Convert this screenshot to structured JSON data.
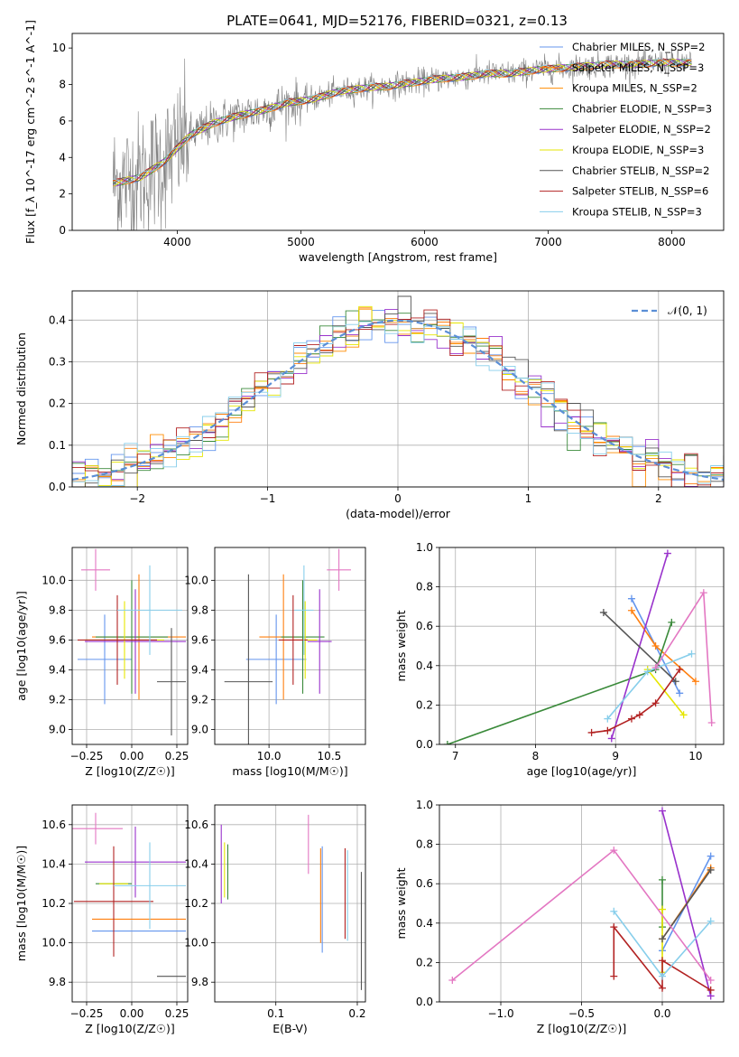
{
  "figure_title": "PLATE=0641, MJD=52176, FIBERID=0321, z=0.13",
  "colors": {
    "chabrier_miles": "#6495ed",
    "salpeter_miles": "#ff7f0e",
    "kroupa_miles": "#ff8c00",
    "chabrier_elodie": "#3a8a3a",
    "salpeter_elodie": "#9932cc",
    "kroupa_elodie": "#e6e600",
    "chabrier_stelib": "#555555",
    "salpeter_stelib": "#b22222",
    "kroupa_stelib": "#87ceeb",
    "pink": "#e377c2",
    "data_gray": "#808080",
    "gauss_blue": "#5b8fd6",
    "grid": "#b0b0b0"
  },
  "chart_data": [
    {
      "id": "spectrum",
      "type": "line",
      "title": "PLATE=0641, MJD=52176, FIBERID=0321, z=0.13",
      "xlabel": "wavelength [Angstrom, rest frame]",
      "ylabel": "Flux [f_λ 10^-17 erg cm^-2 s^-1 A^-1]",
      "xlim": [
        3150,
        8420
      ],
      "ylim": [
        0,
        10.8
      ],
      "xticks": [
        4000,
        5000,
        6000,
        7000,
        8000
      ],
      "yticks": [
        0,
        2,
        4,
        6,
        8,
        10
      ],
      "grid": false,
      "legend_position": "top-right",
      "legend": [
        {
          "label": "Chabrier MILES, N_SSP=2",
          "color": "#6495ed"
        },
        {
          "label": "Salpeter MILES, N_SSP=3",
          "color": "#ff7f0e"
        },
        {
          "label": "Kroupa MILES, N_SSP=2",
          "color": "#ff8c00"
        },
        {
          "label": "Chabrier ELODIE, N_SSP=3",
          "color": "#3a8a3a"
        },
        {
          "label": "Salpeter ELODIE, N_SSP=2",
          "color": "#9932cc"
        },
        {
          "label": "Kroupa ELODIE, N_SSP=3",
          "color": "#e6e600"
        },
        {
          "label": "Chabrier STELIB, N_SSP=2",
          "color": "#555555"
        },
        {
          "label": "Salpeter STELIB, N_SSP=6",
          "color": "#b22222"
        },
        {
          "label": "Kroupa STELIB, N_SSP=3",
          "color": "#87ceeb"
        }
      ],
      "model_x": [
        3500,
        3700,
        3900,
        4000,
        4100,
        4300,
        4500,
        4700,
        4900,
        5100,
        5300,
        5500,
        5700,
        5900,
        6100,
        6300,
        6500,
        6700,
        6900,
        7100,
        7300,
        7500,
        7700,
        7900,
        8150
      ],
      "model_y": [
        2.6,
        2.9,
        3.8,
        4.5,
        5.2,
        5.9,
        6.3,
        6.6,
        7.0,
        7.2,
        7.6,
        7.8,
        7.9,
        8.1,
        8.3,
        8.4,
        8.6,
        8.6,
        8.8,
        8.9,
        9.0,
        9.1,
        9.1,
        9.2,
        9.2
      ]
    },
    {
      "id": "residuals",
      "type": "line",
      "xlabel": "(data-model)/error",
      "ylabel": "Normed distribution",
      "xlim": [
        -2.5,
        2.5
      ],
      "ylim": [
        0,
        0.47
      ],
      "xticks": [
        -2,
        -1,
        0,
        1,
        2
      ],
      "yticks": [
        0.0,
        0.1,
        0.2,
        0.3,
        0.4
      ],
      "grid": true,
      "legend_position": "top-right",
      "legend": [
        {
          "label": "𝒩(0, 1)",
          "color": "#5b8fd6"
        }
      ],
      "bin_width": 0.1
    },
    {
      "id": "age-vs-Z",
      "type": "scatter",
      "xlabel": "Z [log10(Z/Z☉)]",
      "ylabel": "age [log10(age/yr)]",
      "xlim": [
        -0.33,
        0.31
      ],
      "ylim": [
        8.9,
        10.22
      ],
      "xticks": [
        -0.25,
        0.0,
        0.25
      ],
      "yticks": [
        9.0,
        9.2,
        9.4,
        9.6,
        9.8,
        10.0
      ],
      "grid": true,
      "points": [
        {
          "x": -0.15,
          "y": 9.47,
          "xerr": 0.15,
          "yerr": 0.3,
          "color": "#6495ed"
        },
        {
          "x": 0.04,
          "y": 9.62,
          "xerr": 0.26,
          "yerr": 0.42,
          "color": "#ff7f0e"
        },
        {
          "x": 0.0,
          "y": 9.62,
          "xerr": 0.2,
          "yerr": 0.38,
          "color": "#3a8a3a"
        },
        {
          "x": 0.02,
          "y": 9.59,
          "xerr": 0.28,
          "yerr": 0.35,
          "color": "#9932cc"
        },
        {
          "x": -0.04,
          "y": 9.6,
          "xerr": 0.22,
          "yerr": 0.26,
          "color": "#e6e600"
        },
        {
          "x": 0.22,
          "y": 9.32,
          "xerr": 0.08,
          "yerr": 0.36,
          "color": "#555555"
        },
        {
          "x": -0.08,
          "y": 9.6,
          "xerr": 0.22,
          "yerr": 0.3,
          "color": "#b22222"
        },
        {
          "x": 0.1,
          "y": 9.8,
          "xerr": 0.18,
          "yerr": 0.3,
          "color": "#87ceeb"
        },
        {
          "x": -0.2,
          "y": 10.07,
          "xerr": 0.08,
          "yerr": 0.14,
          "color": "#e377c2"
        }
      ]
    },
    {
      "id": "age-vs-mass",
      "type": "scatter",
      "xlabel": "mass [log10(M/M☉)]",
      "ylabel": "",
      "xlim": [
        9.55,
        10.8
      ],
      "ylim": [
        8.9,
        10.22
      ],
      "xticks": [
        10.0,
        10.5
      ],
      "yticks": [
        9.0,
        9.2,
        9.4,
        9.6,
        9.8,
        10.0
      ],
      "grid": true,
      "points": [
        {
          "x": 10.06,
          "y": 9.47,
          "xerr": 0.25,
          "yerr": 0.3,
          "color": "#6495ed"
        },
        {
          "x": 10.12,
          "y": 9.62,
          "xerr": 0.2,
          "yerr": 0.42,
          "color": "#ff7f0e"
        },
        {
          "x": 10.28,
          "y": 9.62,
          "xerr": 0.18,
          "yerr": 0.38,
          "color": "#3a8a3a"
        },
        {
          "x": 10.42,
          "y": 9.59,
          "xerr": 0.1,
          "yerr": 0.35,
          "color": "#9932cc"
        },
        {
          "x": 10.3,
          "y": 9.6,
          "xerr": 0.1,
          "yerr": 0.26,
          "color": "#e6e600"
        },
        {
          "x": 9.83,
          "y": 9.32,
          "xerr": 0.2,
          "yerr": 0.72,
          "color": "#555555"
        },
        {
          "x": 10.2,
          "y": 9.6,
          "xerr": 0.12,
          "yerr": 0.3,
          "color": "#b22222"
        },
        {
          "x": 10.29,
          "y": 9.8,
          "xerr": 0.08,
          "yerr": 0.3,
          "color": "#87ceeb"
        },
        {
          "x": 10.58,
          "y": 10.07,
          "xerr": 0.1,
          "yerr": 0.14,
          "color": "#e377c2"
        }
      ]
    },
    {
      "id": "weight-vs-age",
      "type": "line",
      "xlabel": "age [log10(age/yr)]",
      "ylabel": "mass weight",
      "xlim": [
        6.8,
        10.35
      ],
      "ylim": [
        0,
        1.0
      ],
      "xticks": [
        7,
        8,
        9,
        10
      ],
      "yticks": [
        0.0,
        0.2,
        0.4,
        0.6,
        0.8,
        1.0
      ],
      "grid": true,
      "series": [
        {
          "color": "#6495ed",
          "x": [
            9.2,
            9.8
          ],
          "y": [
            0.74,
            0.26
          ]
        },
        {
          "color": "#ff7f0e",
          "x": [
            9.2,
            9.5,
            10.0
          ],
          "y": [
            0.68,
            0.5,
            0.32
          ]
        },
        {
          "color": "#3a8a3a",
          "x": [
            6.9,
            9.5,
            9.7
          ],
          "y": [
            0.0,
            0.38,
            0.62
          ]
        },
        {
          "color": "#9932cc",
          "x": [
            8.95,
            9.65
          ],
          "y": [
            0.03,
            0.97
          ]
        },
        {
          "color": "#e6e600",
          "x": [
            9.4,
            9.85
          ],
          "y": [
            0.38,
            0.15
          ]
        },
        {
          "color": "#555555",
          "x": [
            8.85,
            9.75
          ],
          "y": [
            0.67,
            0.32
          ]
        },
        {
          "color": "#b22222",
          "x": [
            8.7,
            8.9,
            9.2,
            9.3,
            9.5,
            9.8
          ],
          "y": [
            0.06,
            0.07,
            0.13,
            0.15,
            0.21,
            0.38
          ]
        },
        {
          "color": "#87ceeb",
          "x": [
            8.9,
            9.4,
            9.95
          ],
          "y": [
            0.13,
            0.37,
            0.46
          ]
        },
        {
          "color": "#e377c2",
          "x": [
            9.5,
            10.1,
            10.2
          ],
          "y": [
            0.39,
            0.77,
            0.11
          ]
        }
      ]
    },
    {
      "id": "mass-vs-Z",
      "type": "scatter",
      "xlabel": "Z [log10(Z/Z☉)]",
      "ylabel": "mass [log10(M/M☉)]",
      "xlim": [
        -0.33,
        0.31
      ],
      "ylim": [
        9.7,
        10.7
      ],
      "xticks": [
        -0.25,
        0.0,
        0.25
      ],
      "yticks": [
        9.8,
        10.0,
        10.2,
        10.4,
        10.6
      ],
      "grid": true,
      "points": [
        {
          "x": 0.04,
          "y": 10.06,
          "xerr": 0.26,
          "yerr": 0.0,
          "color": "#6495ed"
        },
        {
          "x": 0.04,
          "y": 10.12,
          "xerr": 0.26,
          "yerr": 0.0,
          "color": "#ff7f0e"
        },
        {
          "x": -0.1,
          "y": 10.3,
          "xerr": 0.1,
          "yerr": 0.0,
          "color": "#3a8a3a"
        },
        {
          "x": 0.02,
          "y": 10.41,
          "xerr": 0.28,
          "yerr": 0.18,
          "color": "#9932cc"
        },
        {
          "x": -0.1,
          "y": 10.3,
          "xerr": 0.08,
          "yerr": 0.0,
          "color": "#e6e600"
        },
        {
          "x": 0.22,
          "y": 9.83,
          "xerr": 0.08,
          "yerr": 0.0,
          "color": "#555555"
        },
        {
          "x": -0.1,
          "y": 10.21,
          "xerr": 0.22,
          "yerr": 0.28,
          "color": "#b22222"
        },
        {
          "x": 0.1,
          "y": 10.29,
          "xerr": 0.2,
          "yerr": 0.22,
          "color": "#87ceeb"
        },
        {
          "x": -0.2,
          "y": 10.58,
          "xerr": 0.15,
          "yerr": 0.08,
          "color": "#e377c2"
        }
      ]
    },
    {
      "id": "mass-vs-ebv",
      "type": "scatter",
      "xlabel": "E(B-V)",
      "ylabel": "",
      "xlim": [
        0.025,
        0.21
      ],
      "ylim": [
        9.7,
        10.7
      ],
      "xticks": [
        0.1,
        0.2
      ],
      "yticks": [
        9.8,
        10.0,
        10.2,
        10.4,
        10.6
      ],
      "grid": true,
      "points": [
        {
          "x": 0.157,
          "y": 10.22,
          "yerr": 0.27,
          "color": "#6495ed"
        },
        {
          "x": 0.155,
          "y": 10.24,
          "yerr": 0.24,
          "color": "#ff7f0e"
        },
        {
          "x": 0.041,
          "y": 10.36,
          "yerr": 0.14,
          "color": "#3a8a3a"
        },
        {
          "x": 0.033,
          "y": 10.4,
          "yerr": 0.2,
          "color": "#9932cc"
        },
        {
          "x": 0.037,
          "y": 10.37,
          "yerr": 0.14,
          "color": "#e6e600"
        },
        {
          "x": 0.205,
          "y": 10.06,
          "yerr": 0.3,
          "color": "#555555"
        },
        {
          "x": 0.185,
          "y": 10.25,
          "yerr": 0.23,
          "color": "#b22222"
        },
        {
          "x": 0.188,
          "y": 10.24,
          "yerr": 0.23,
          "color": "#87ceeb"
        },
        {
          "x": 0.14,
          "y": 10.5,
          "yerr": 0.15,
          "color": "#e377c2"
        }
      ]
    },
    {
      "id": "weight-vs-Z",
      "type": "line",
      "xlabel": "Z [log10(Z/Z☉)]",
      "ylabel": "mass weight",
      "xlim": [
        -1.38,
        0.38
      ],
      "ylim": [
        0,
        1.0
      ],
      "xticks": [
        -1.0,
        -0.5,
        0.0
      ],
      "yticks": [
        0.0,
        0.2,
        0.4,
        0.6,
        0.8,
        1.0
      ],
      "grid": true,
      "series": [
        {
          "color": "#6495ed",
          "x": [
            0.0,
            0.3
          ],
          "y": [
            0.26,
            0.74
          ]
        },
        {
          "color": "#ff7f0e",
          "x": [
            0.0,
            0.3
          ],
          "y": [
            0.32,
            0.68
          ]
        },
        {
          "color": "#3a8a3a",
          "x": [
            0.0,
            0.0
          ],
          "y": [
            0.38,
            0.62
          ]
        },
        {
          "color": "#9932cc",
          "x": [
            0.0,
            0.3
          ],
          "y": [
            0.97,
            0.03
          ]
        },
        {
          "color": "#e6e600",
          "x": [
            0.0,
            0.0
          ],
          "y": [
            0.15,
            0.47
          ]
        },
        {
          "color": "#555555",
          "x": [
            0.0,
            0.3
          ],
          "y": [
            0.32,
            0.67
          ]
        },
        {
          "color": "#b22222",
          "x": [
            -0.3,
            -0.3,
            0.0,
            0.0,
            0.3
          ],
          "y": [
            0.13,
            0.38,
            0.07,
            0.21,
            0.06
          ]
        },
        {
          "color": "#87ceeb",
          "x": [
            -0.3,
            0.0,
            0.3
          ],
          "y": [
            0.46,
            0.13,
            0.41
          ]
        },
        {
          "color": "#e377c2",
          "x": [
            -1.3,
            -0.3,
            0.3
          ],
          "y": [
            0.11,
            0.77,
            0.11
          ]
        }
      ]
    }
  ]
}
